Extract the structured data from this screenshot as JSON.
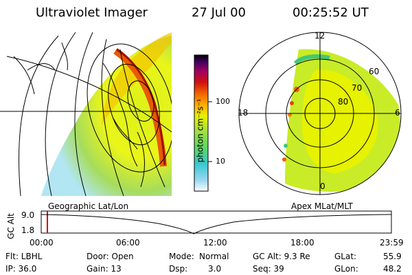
{
  "header": {
    "title": "Ultraviolet Imager",
    "date": "27 Jul 00",
    "time": "00:25:52 UT"
  },
  "colorbar": {
    "unit_label": "photon cm⁻²s⁻¹",
    "ticks": [
      "100",
      "10"
    ],
    "scale": "log"
  },
  "geo_panel": {
    "label": "Geographic Lat/Lon"
  },
  "polar_panel": {
    "label": "Apex MLat/MLT",
    "mlt_labels": {
      "top": "12",
      "left": "18",
      "right": "6",
      "bottom": "0"
    },
    "lat_labels": [
      "60",
      "70",
      "80"
    ]
  },
  "timeline": {
    "axis_label": "GC Alt",
    "y_ticks": [
      "9.0",
      "1.8"
    ],
    "x_ticks": [
      "00:00",
      "06:00",
      "12:00",
      "18:00",
      "23:59"
    ],
    "current_marker_hours": 0.43
  },
  "status": {
    "row1": {
      "flt": "Flt: LBHL",
      "door": "Door: Open",
      "mode_label": "Mode:",
      "mode_value": "Normal",
      "gcalt": "GC Alt: 9.3 Re",
      "glat_label": "GLat:",
      "glat_value": "55.9"
    },
    "row2": {
      "ip": "IP: 36.0",
      "gain": "Gain: 13",
      "dsp_label": "Dsp:",
      "dsp_value": "3.0",
      "seq": "Seq: 39",
      "glon_label": "GLon:",
      "glon_value": "48.2"
    }
  }
}
